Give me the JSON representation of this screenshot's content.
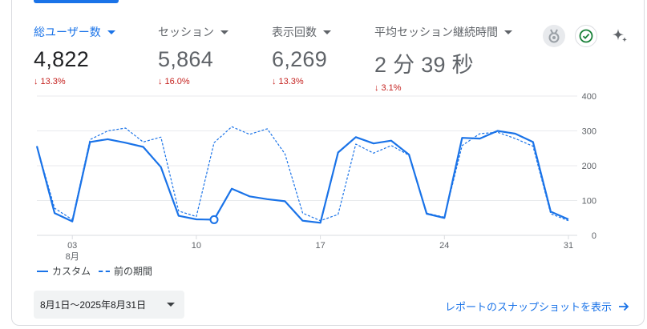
{
  "metrics": [
    {
      "label": "総ユーザー数",
      "value": "4,822",
      "change": "13.3%",
      "active": true
    },
    {
      "label": "セッション",
      "value": "5,864",
      "change": "16.0%",
      "active": false
    },
    {
      "label": "表示回数",
      "value": "6,269",
      "change": "13.3%",
      "active": false
    },
    {
      "label": "平均セッション継続時間",
      "value": "2 分 39 秒",
      "change": "3.1%",
      "active": false
    }
  ],
  "change_arrow": "↓",
  "icons": [
    "badge-icon",
    "check-circle-icon",
    "sparkle-icon"
  ],
  "colors": {
    "accent": "#1a73e8",
    "negative": "#c5221f",
    "check": "#188038"
  },
  "legend": {
    "current": "カスタム",
    "previous": "前の期間"
  },
  "date_range": "8月1日～2025年8月31日",
  "snapshot_link": "レポートのスナップショットを表示",
  "chart_data": {
    "type": "line",
    "x": [
      "2025-08-01",
      "2025-08-02",
      "2025-08-03",
      "2025-08-04",
      "2025-08-05",
      "2025-08-06",
      "2025-08-07",
      "2025-08-08",
      "2025-08-09",
      "2025-08-10",
      "2025-08-11",
      "2025-08-12",
      "2025-08-13",
      "2025-08-14",
      "2025-08-15",
      "2025-08-16",
      "2025-08-17",
      "2025-08-18",
      "2025-08-19",
      "2025-08-20",
      "2025-08-21",
      "2025-08-22",
      "2025-08-23",
      "2025-08-24",
      "2025-08-25",
      "2025-08-26",
      "2025-08-27",
      "2025-08-28",
      "2025-08-29",
      "2025-08-30",
      "2025-08-31"
    ],
    "x_ticks": [
      {
        "day": 3,
        "label": "03",
        "sub": "8月"
      },
      {
        "day": 10,
        "label": "10"
      },
      {
        "day": 17,
        "label": "17"
      },
      {
        "day": 24,
        "label": "24"
      },
      {
        "day": 31,
        "label": "31"
      }
    ],
    "y_ticks": [
      0,
      100,
      200,
      300,
      400
    ],
    "ylim": [
      0,
      400
    ],
    "y_axis_position": "right",
    "grid": true,
    "legend_position": "bottom-left",
    "series": [
      {
        "name": "カスタム",
        "style": "solid",
        "values": [
          256,
          64,
          40,
          268,
          276,
          266,
          254,
          196,
          56,
          46,
          45,
          134,
          112,
          104,
          98,
          42,
          36,
          238,
          282,
          264,
          272,
          232,
          62,
          50,
          280,
          278,
          300,
          292,
          268,
          68,
          46
        ]
      },
      {
        "name": "前の期間",
        "style": "dashed",
        "values": [
          256,
          78,
          45,
          275,
          300,
          308,
          268,
          282,
          70,
          54,
          266,
          312,
          290,
          306,
          234,
          64,
          42,
          60,
          262,
          236,
          258,
          230,
          64,
          52,
          258,
          292,
          296,
          278,
          256,
          62,
          42
        ]
      }
    ],
    "highlight_index": 10
  }
}
